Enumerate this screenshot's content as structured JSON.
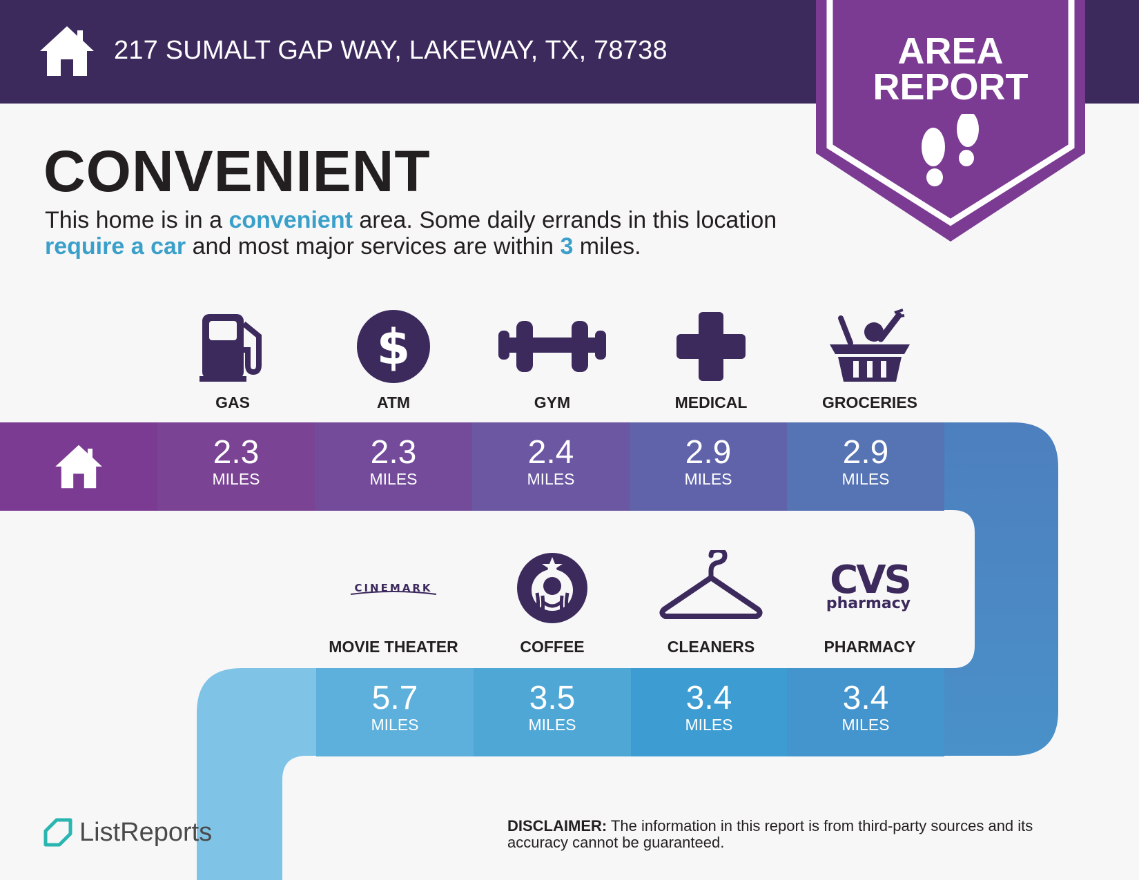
{
  "header": {
    "address": "217 SUMALT GAP WAY, LAKEWAY, TX, 78738",
    "home_icon": "house-icon"
  },
  "badge": {
    "line1": "AREA",
    "line2": "REPORT",
    "icon": "footprints-icon"
  },
  "title": "CONVENIENT",
  "intro": {
    "p1": "This home is in a ",
    "h1": "convenient",
    "p2": " area. Some daily errands in this location ",
    "h2": "require a car",
    "p3": " and most major services are within ",
    "h3": "3",
    "p4": " miles."
  },
  "row1": [
    {
      "label": "GAS",
      "miles": "2.3",
      "unit": "MILES",
      "icon": "gas-pump-icon"
    },
    {
      "label": "ATM",
      "miles": "2.3",
      "unit": "MILES",
      "icon": "dollar-icon"
    },
    {
      "label": "GYM",
      "miles": "2.4",
      "unit": "MILES",
      "icon": "dumbbell-icon"
    },
    {
      "label": "MEDICAL",
      "miles": "2.9",
      "unit": "MILES",
      "icon": "medical-cross-icon"
    },
    {
      "label": "GROCERIES",
      "miles": "2.9",
      "unit": "MILES",
      "icon": "grocery-basket-icon"
    }
  ],
  "row2": [
    {
      "label": "MOVIE THEATER",
      "miles": "5.7",
      "unit": "MILES",
      "icon": "cinemark-logo",
      "logo_text": "CINEMARK"
    },
    {
      "label": "COFFEE",
      "miles": "3.5",
      "unit": "MILES",
      "icon": "starbucks-logo"
    },
    {
      "label": "CLEANERS",
      "miles": "3.4",
      "unit": "MILES",
      "icon": "hanger-icon"
    },
    {
      "label": "PHARMACY",
      "miles": "3.4",
      "unit": "MILES",
      "icon": "cvs-pharmacy-logo",
      "logo_text": "CVS",
      "logo_sub": "pharmacy"
    }
  ],
  "footer": {
    "brand": "ListReports",
    "disclaimer_label": "DISCLAIMER:",
    "disclaimer_text": " The information in this report is from third-party sources and its accuracy cannot be guaranteed."
  },
  "colors": {
    "header": "#3c2a5d",
    "badge": "#7b3b93",
    "accent": "#3aa0c9",
    "icon": "#3c2a5d"
  }
}
